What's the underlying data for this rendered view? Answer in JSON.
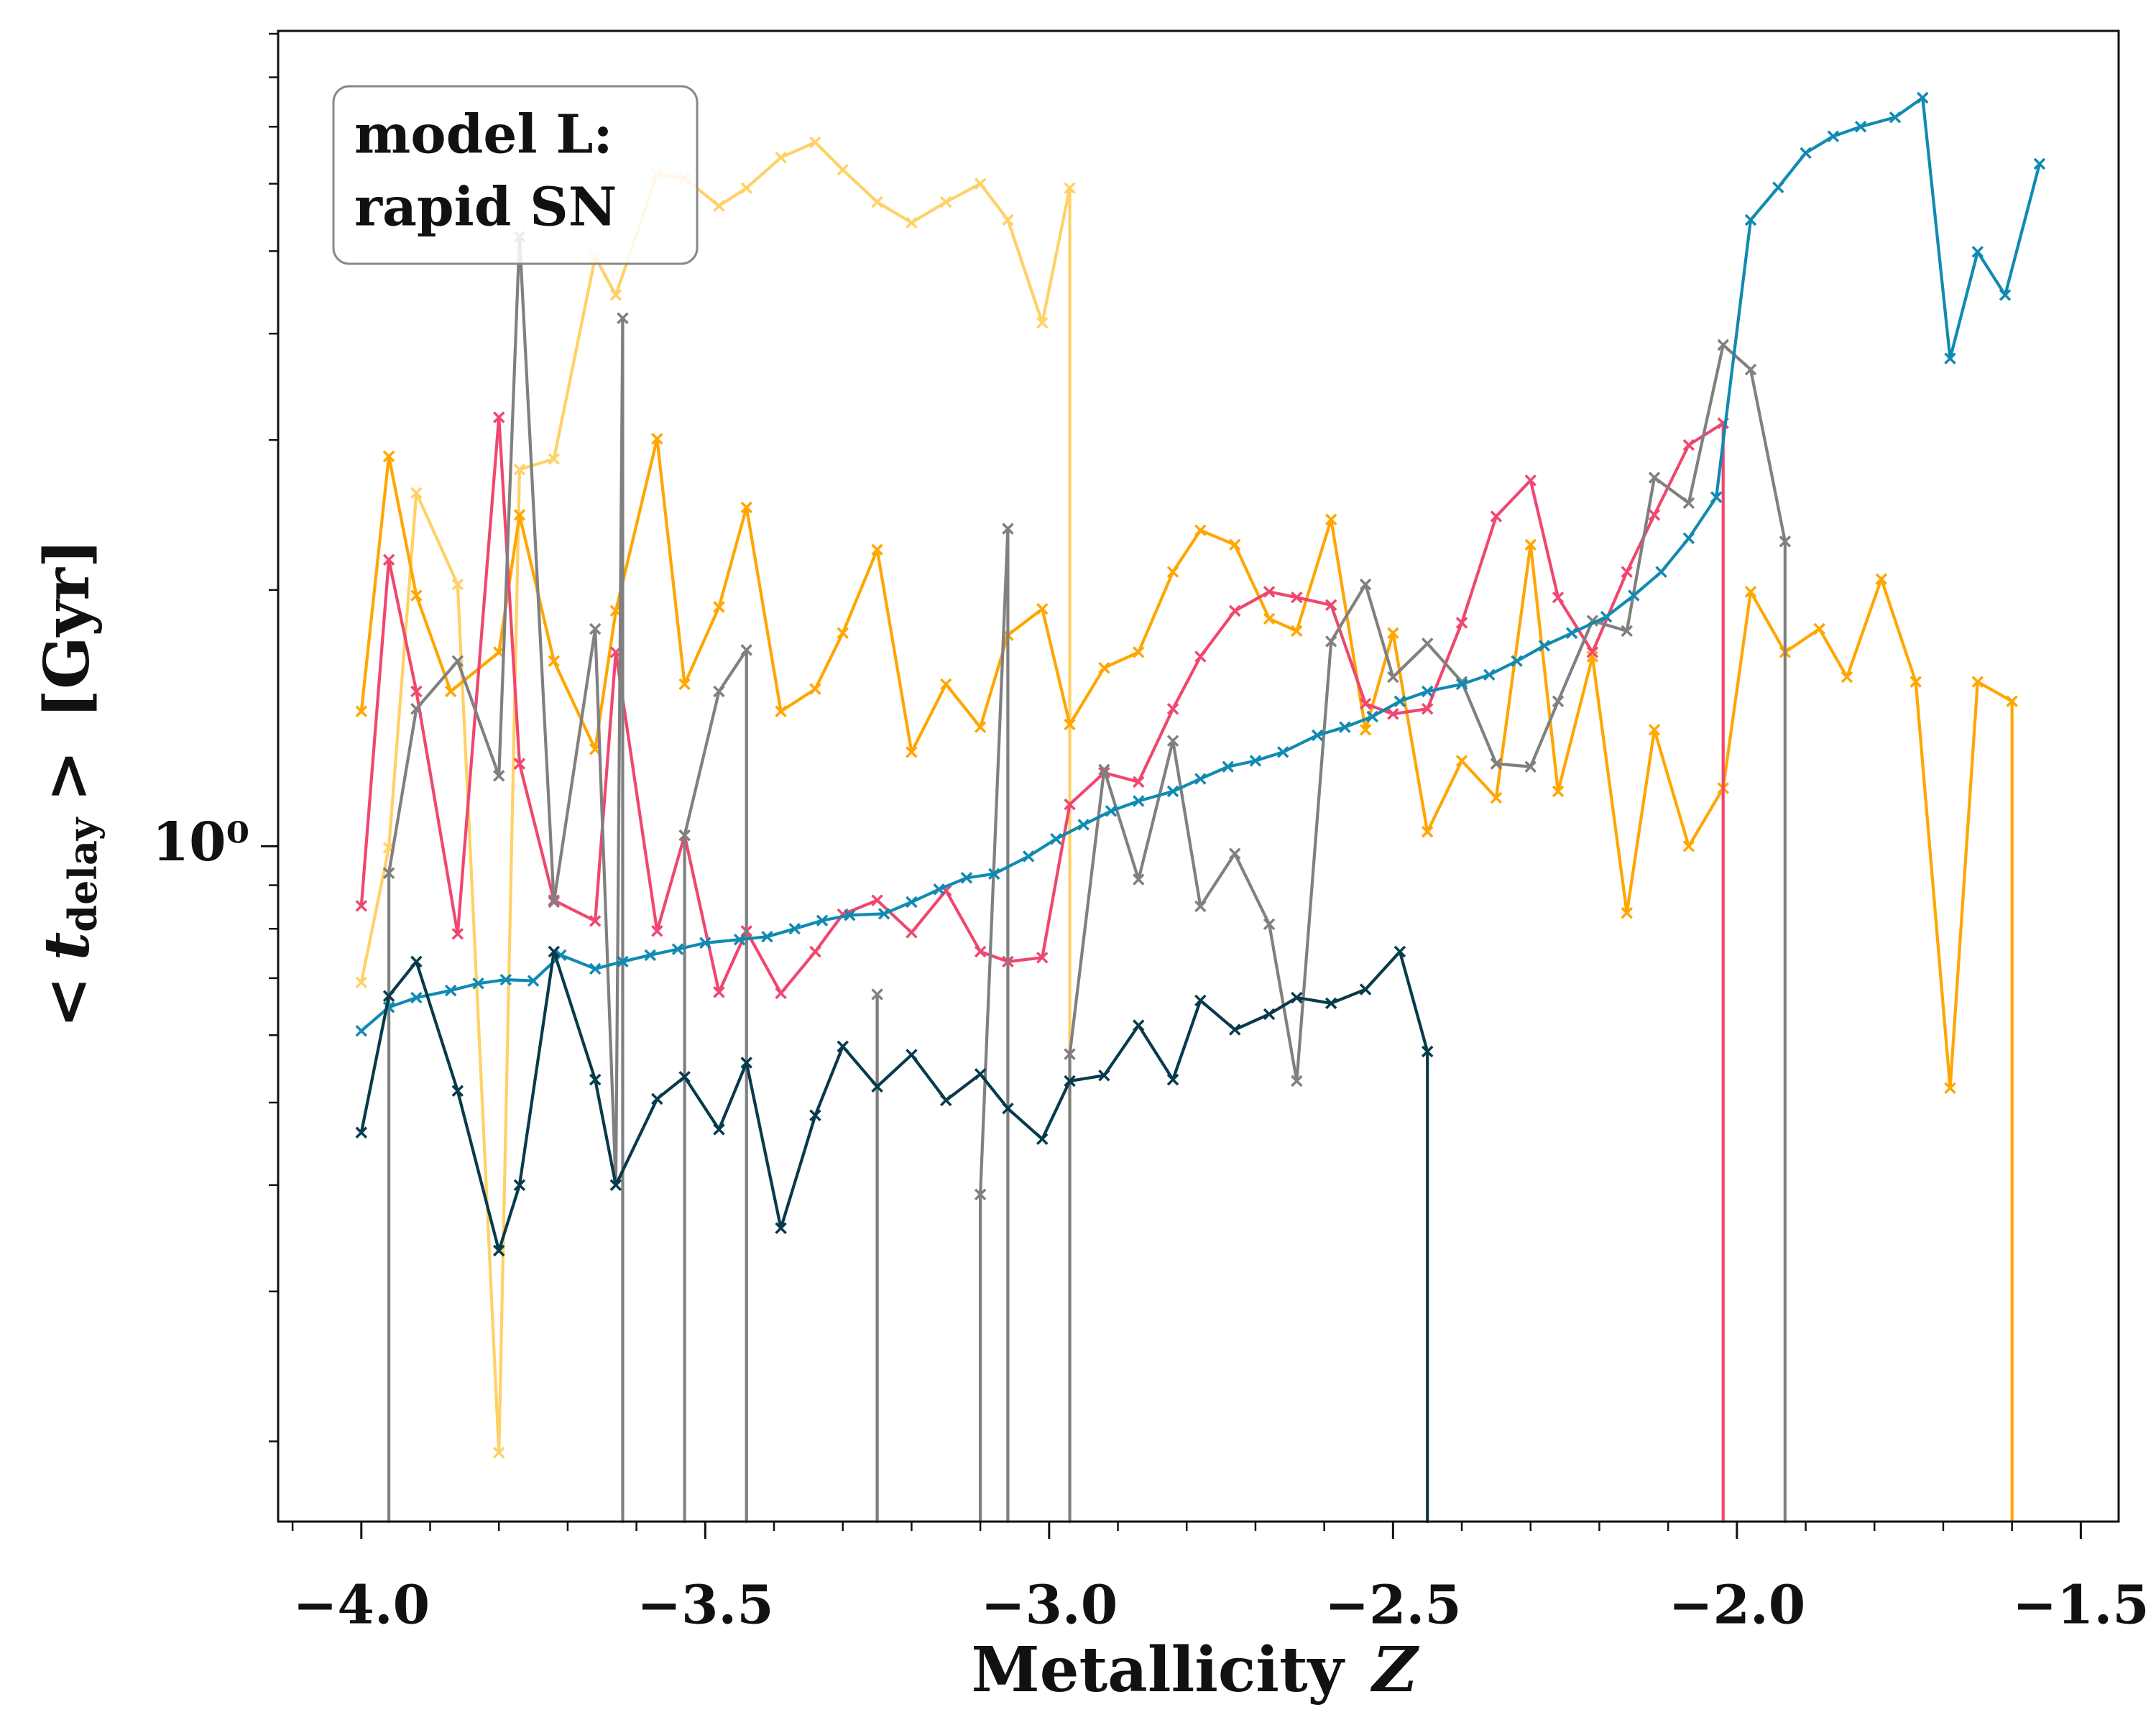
{
  "chart_data": {
    "type": "line",
    "xlabel": [
      "Metallicity",
      "Z"
    ],
    "ylabel": [
      "<",
      "t",
      "delay",
      ">",
      "[Gyr]"
    ],
    "annotation": [
      "model L:",
      "rapid SN"
    ],
    "xlim": [
      -4.121,
      -1.445
    ],
    "ylim": [
      0.161,
      9.07
    ],
    "yscale": "log",
    "grid": false,
    "xticks": [
      {
        "value": -4,
        "label": "−4.0"
      },
      {
        "value": -3.5,
        "label": "−3.5"
      },
      {
        "value": -3,
        "label": "−3.0"
      },
      {
        "value": -2.5,
        "label": "−2.5"
      },
      {
        "value": -2,
        "label": "−2.0"
      },
      {
        "value": -1.5,
        "label": "−1.5"
      }
    ],
    "yticks": [
      {
        "value": 1,
        "label": "10⁰"
      }
    ],
    "series": [
      {
        "color": "#ffd166",
        "x": [
          -4.0,
          -3.96,
          -3.92,
          -3.86,
          -3.8,
          -3.77,
          -3.72,
          -3.66,
          -3.63,
          -3.57,
          -3.53,
          -3.48,
          -3.44,
          -3.39,
          -3.34,
          -3.3,
          -3.25,
          -3.2,
          -3.15,
          -3.1,
          -3.06,
          -3.01,
          -2.97,
          -2.92
        ],
        "values": [
          0.692,
          0.996,
          2.6,
          2.03,
          0.194,
          2.77,
          2.85,
          4.92,
          4.44,
          6.16,
          6.09,
          5.65,
          5.93,
          6.44,
          6.71,
          6.23,
          5.71,
          5.4,
          5.71,
          6.0,
          5.44,
          4.12,
          5.93,
          0
        ]
      },
      {
        "color": "#ffa600",
        "x": [
          -4.0,
          -3.96,
          -3.92,
          -3.87,
          -3.8,
          -3.77,
          -3.72,
          -3.66,
          -3.63,
          -3.57,
          -3.53,
          -3.48,
          -3.44,
          -3.39,
          -3.34,
          -3.3,
          -3.25,
          -3.2,
          -3.15,
          -3.1,
          -3.06,
          -3.01,
          -2.97,
          -2.92,
          -2.87,
          -2.82,
          -2.78,
          -2.73,
          -2.68,
          -2.64,
          -2.59,
          -2.54,
          -2.5,
          -2.45,
          -2.4,
          -2.35,
          -2.3,
          -2.26,
          -2.21,
          -2.16,
          -2.12,
          -2.07,
          -2.02,
          -1.98,
          -1.93,
          -1.88,
          -1.84,
          -1.79,
          -1.74,
          -1.69,
          -1.65,
          -1.6,
          -1.56
        ],
        "values": [
          1.44,
          2.87,
          1.97,
          1.52,
          1.69,
          2.45,
          1.65,
          1.3,
          1.89,
          3.01,
          1.55,
          1.91,
          2.5,
          1.44,
          1.53,
          1.78,
          2.23,
          1.29,
          1.55,
          1.38,
          1.77,
          1.9,
          1.39,
          1.62,
          1.69,
          2.1,
          2.35,
          2.26,
          1.85,
          1.79,
          2.42,
          1.37,
          1.78,
          1.04,
          1.26,
          1.14,
          2.26,
          1.16,
          1.67,
          0.835,
          1.37,
          1.0,
          1.17,
          1.99,
          1.69,
          1.8,
          1.58,
          2.06,
          1.56,
          0.52,
          1.56,
          1.48,
          0
        ]
      },
      {
        "color": "#ef476f",
        "x": [
          -4.0,
          -3.96,
          -3.92,
          -3.86,
          -3.8,
          -3.77,
          -3.72,
          -3.66,
          -3.63,
          -3.57,
          -3.53,
          -3.48,
          -3.44,
          -3.39,
          -3.34,
          -3.3,
          -3.25,
          -3.2,
          -3.15,
          -3.1,
          -3.06,
          -3.01,
          -2.97,
          -2.92,
          -2.87,
          -2.82,
          -2.78,
          -2.73,
          -2.68,
          -2.64,
          -2.59,
          -2.54,
          -2.5,
          -2.45,
          -2.4,
          -2.35,
          -2.3,
          -2.26,
          -2.21,
          -2.16,
          -2.12,
          -2.07,
          -2.02,
          -1.98
        ],
        "values": [
          0.851,
          2.17,
          1.52,
          0.789,
          3.19,
          1.25,
          0.864,
          0.817,
          1.69,
          0.795,
          1.03,
          0.674,
          0.795,
          0.672,
          0.752,
          0.832,
          0.864,
          0.792,
          0.887,
          0.752,
          0.732,
          0.74,
          1.12,
          1.22,
          1.19,
          1.45,
          1.67,
          1.89,
          1.99,
          1.96,
          1.92,
          1.47,
          1.43,
          1.45,
          1.83,
          2.44,
          2.69,
          1.96,
          1.69,
          2.1,
          2.45,
          2.96,
          3.14,
          0
        ]
      },
      {
        "color": "#808080",
        "x": [
          -4.0,
          -3.96,
          -3.92,
          -3.86,
          -3.8,
          -3.77,
          -3.72,
          -3.66,
          -3.63,
          -3.62,
          -3.58,
          -3.53,
          -3.48,
          -3.44,
          -3.39,
          -3.29,
          -3.25,
          -3.2,
          -3.15,
          -3.1,
          -3.06,
          -3.01,
          -2.97,
          -2.92,
          -2.87,
          -2.82,
          -2.78,
          -2.73,
          -2.68,
          -2.64,
          -2.59,
          -2.54,
          -2.5,
          -2.45,
          -2.4,
          -2.35,
          -2.3,
          -2.26,
          -2.21,
          -2.16,
          -2.12,
          -2.07,
          -2.02,
          -1.98,
          -1.93,
          -1.88
        ],
        "values": [
          0,
          0.93,
          1.45,
          1.65,
          1.21,
          5.2,
          0.86,
          1.8,
          0.4,
          4.17,
          0,
          1.03,
          1.52,
          1.7,
          0,
          0,
          0.67,
          0,
          0,
          0.39,
          2.36,
          0,
          0.57,
          1.23,
          0.914,
          1.33,
          0.85,
          0.98,
          0.81,
          0.53,
          1.74,
          2.03,
          1.58,
          1.73,
          1.56,
          1.25,
          1.24,
          1.48,
          1.84,
          1.79,
          2.71,
          2.53,
          3.88,
          3.63,
          2.28,
          0
        ]
      },
      {
        "color": "#118ab2",
        "x": [
          -4.0,
          -3.96,
          -3.92,
          -3.87,
          -3.83,
          -3.79,
          -3.75,
          -3.71,
          -3.66,
          -3.62,
          -3.58,
          -3.54,
          -3.5,
          -3.45,
          -3.41,
          -3.37,
          -3.33,
          -3.29,
          -3.24,
          -3.2,
          -3.16,
          -3.12,
          -3.08,
          -3.03,
          -2.99,
          -2.95,
          -2.91,
          -2.87,
          -2.82,
          -2.78,
          -2.74,
          -2.7,
          -2.66,
          -2.61,
          -2.57,
          -2.53,
          -2.49,
          -2.45,
          -2.4,
          -2.36,
          -2.32,
          -2.28,
          -2.24,
          -2.19,
          -2.15,
          -2.11,
          -2.07,
          -2.03,
          -1.98,
          -1.94,
          -1.9,
          -1.86,
          -1.82,
          -1.77,
          -1.73,
          -1.69,
          -1.65,
          -1.61,
          -1.56
        ],
        "values": [
          0.607,
          0.647,
          0.664,
          0.677,
          0.69,
          0.697,
          0.695,
          0.745,
          0.718,
          0.732,
          0.745,
          0.757,
          0.77,
          0.777,
          0.783,
          0.8,
          0.818,
          0.83,
          0.833,
          0.86,
          0.89,
          0.918,
          0.928,
          0.973,
          1.02,
          1.06,
          1.1,
          1.13,
          1.16,
          1.2,
          1.24,
          1.26,
          1.29,
          1.35,
          1.38,
          1.42,
          1.48,
          1.52,
          1.55,
          1.59,
          1.65,
          1.72,
          1.78,
          1.86,
          1.97,
          2.1,
          2.3,
          2.57,
          5.44,
          5.94,
          6.52,
          6.82,
          7.0,
          7.18,
          7.57,
          3.74,
          4.99,
          4.44,
          6.33
        ]
      },
      {
        "color": "#073b4c",
        "x": [
          -4.0,
          -3.96,
          -3.92,
          -3.86,
          -3.8,
          -3.77,
          -3.72,
          -3.66,
          -3.63,
          -3.57,
          -3.53,
          -3.48,
          -3.44,
          -3.39,
          -3.34,
          -3.3,
          -3.25,
          -3.2,
          -3.15,
          -3.1,
          -3.06,
          -3.01,
          -2.97,
          -2.92,
          -2.87,
          -2.82,
          -2.78,
          -2.73,
          -2.68,
          -2.64,
          -2.59,
          -2.54,
          -2.49,
          -2.45,
          -2.4
        ],
        "values": [
          0.461,
          0.667,
          0.732,
          0.516,
          0.335,
          0.4,
          0.752,
          0.532,
          0.4,
          0.505,
          0.536,
          0.465,
          0.557,
          0.356,
          0.483,
          0.582,
          0.522,
          0.569,
          0.503,
          0.54,
          0.492,
          0.453,
          0.53,
          0.538,
          0.616,
          0.532,
          0.659,
          0.609,
          0.635,
          0.664,
          0.654,
          0.679,
          0.752,
          0.574,
          0
        ]
      }
    ]
  }
}
